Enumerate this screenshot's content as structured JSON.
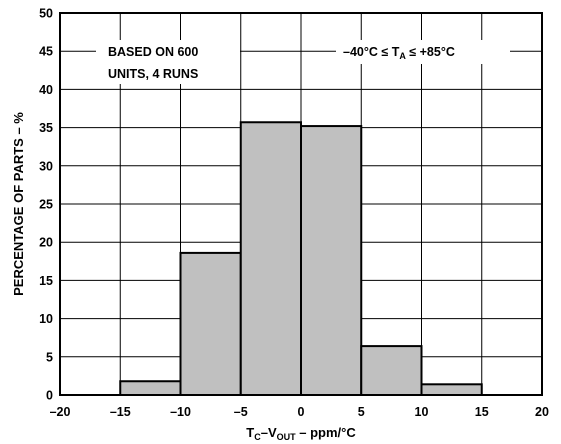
{
  "chart_data": {
    "type": "bar",
    "bins": [
      {
        "from": -15,
        "to": -10,
        "value": 1.8
      },
      {
        "from": -10,
        "to": -5,
        "value": 18.6
      },
      {
        "from": -5,
        "to": 0,
        "value": 35.7
      },
      {
        "from": 0,
        "to": 5,
        "value": 35.2
      },
      {
        "from": 5,
        "to": 10,
        "value": 6.4
      },
      {
        "from": 10,
        "to": 15,
        "value": 1.4
      }
    ],
    "xlim": [
      -20,
      20
    ],
    "ylim": [
      0,
      50
    ],
    "x_ticks": [
      -20,
      -15,
      -10,
      -5,
      0,
      5,
      10,
      15,
      20
    ],
    "y_ticks": [
      0,
      5,
      10,
      15,
      20,
      25,
      30,
      35,
      40,
      45,
      50
    ],
    "x_tick_labels": [
      "–20",
      "–15",
      "–10",
      "–5",
      "0",
      "5",
      "10",
      "15",
      "20"
    ],
    "xlabel": {
      "main": "T",
      "sub1": "C",
      "mid": "–V",
      "sub2": "OUT",
      "rest": " – ppm/°C"
    },
    "ylabel": "PERCENTAGE OF PARTS – %",
    "grid": true,
    "bar_color": "#c0c0c0",
    "annotations": {
      "left_line1": "BASED ON 600",
      "left_line2": "UNITS, 4 RUNS",
      "right_main": "–40°C ≤ T",
      "right_sub": "A",
      "right_rest": " ≤ +85°C"
    }
  }
}
